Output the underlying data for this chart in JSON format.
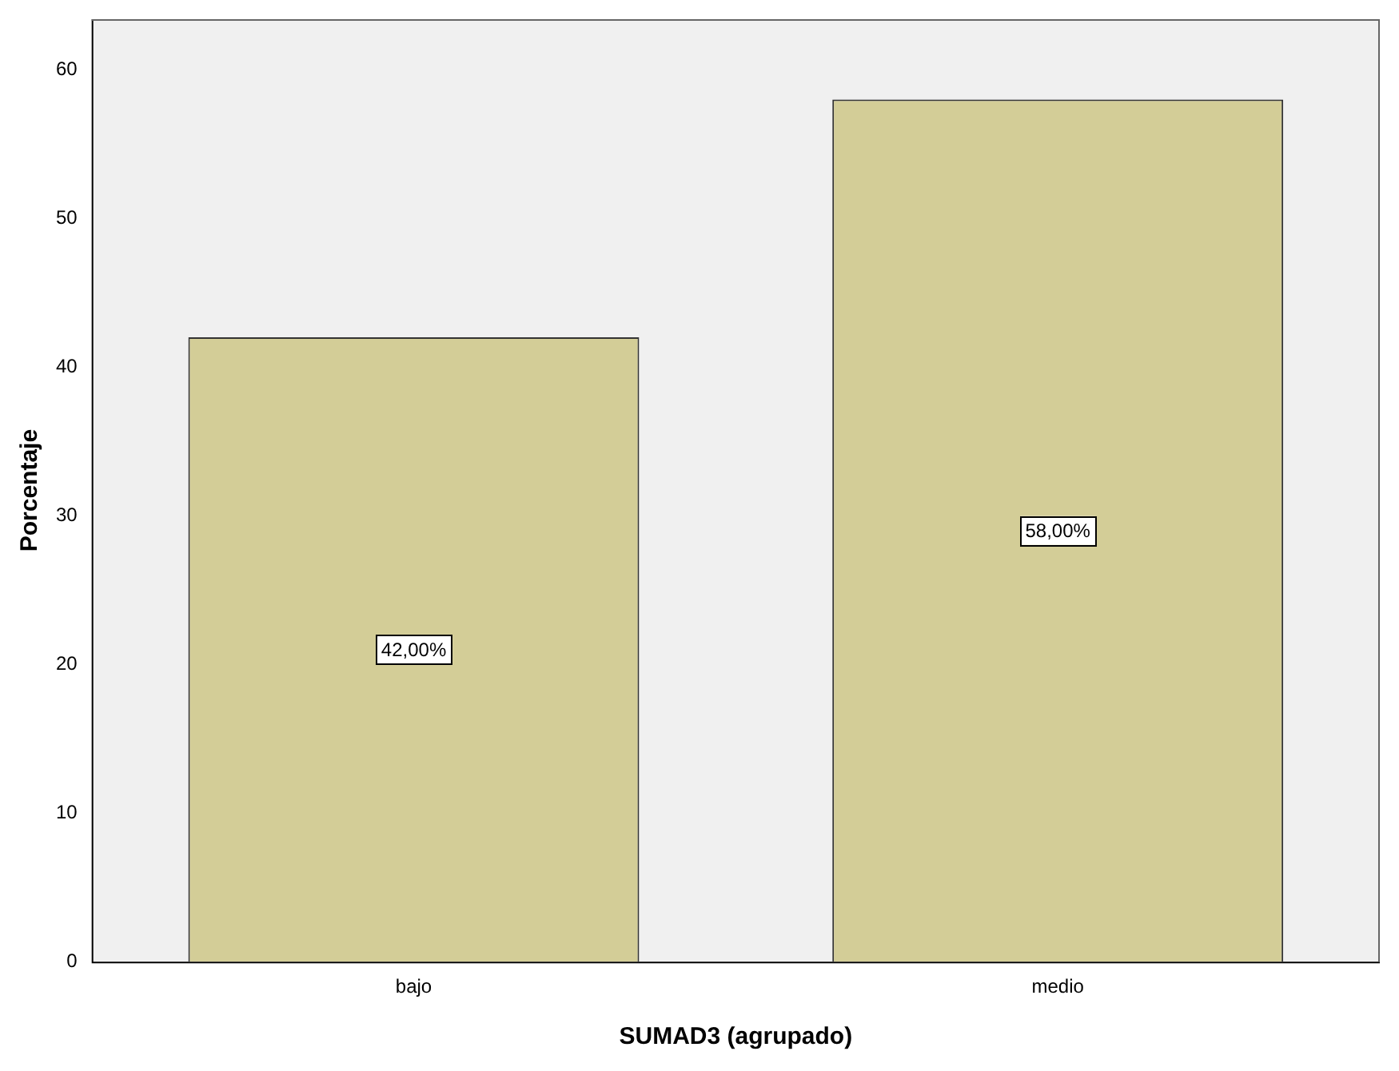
{
  "chart_data": {
    "type": "bar",
    "xlabel": "SUMAD3 (agrupado)",
    "ylabel": "Porcentaje",
    "categories": [
      "bajo",
      "medio"
    ],
    "values": [
      42,
      58
    ],
    "value_labels": [
      "42,00%",
      "58,00%"
    ],
    "color": "#d3cd97",
    "ylim": [
      0,
      63.4
    ],
    "yticks": [
      0,
      10,
      20,
      30,
      40,
      50,
      60
    ],
    "grid": false,
    "legend": false
  }
}
